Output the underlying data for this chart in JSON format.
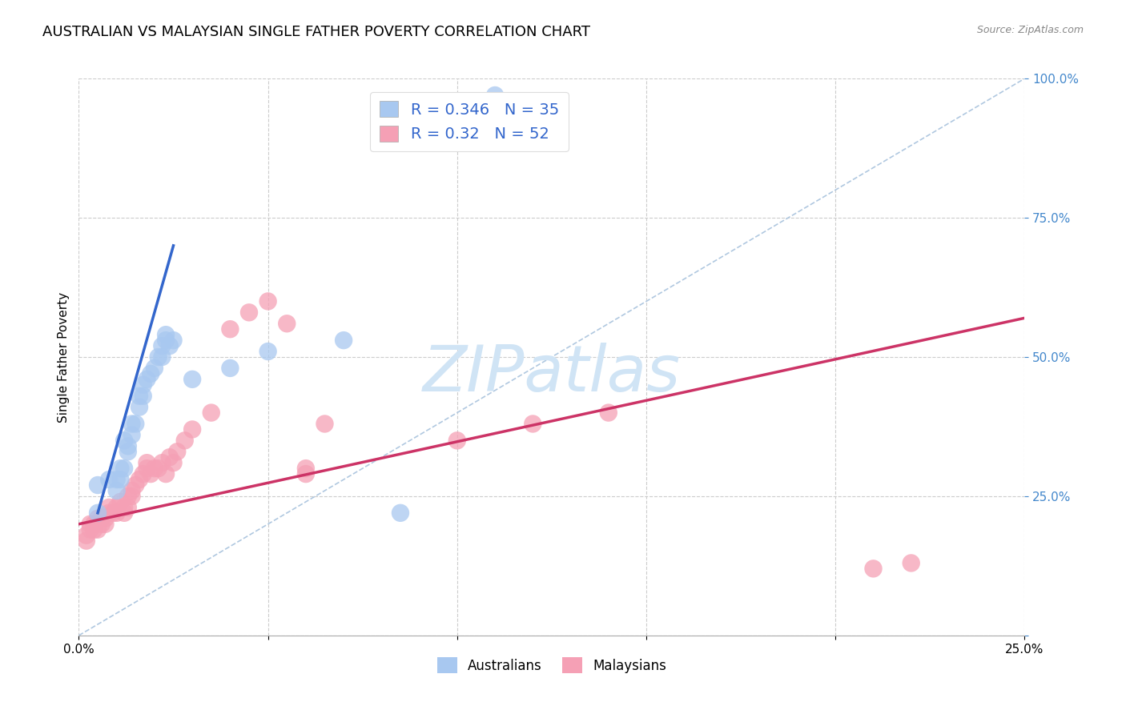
{
  "title": "AUSTRALIAN VS MALAYSIAN SINGLE FATHER POVERTY CORRELATION CHART",
  "source": "Source: ZipAtlas.com",
  "ylabel": "Single Father Poverty",
  "xlim": [
    0.0,
    0.25
  ],
  "ylim": [
    0.0,
    1.0
  ],
  "R_aus": 0.346,
  "N_aus": 35,
  "R_mal": 0.32,
  "N_mal": 52,
  "aus_color": "#A8C8F0",
  "mal_color": "#F5A0B5",
  "aus_line_color": "#3366CC",
  "mal_line_color": "#CC3366",
  "ref_line_color": "#B0C8E0",
  "watermark_color": "#D0E4F5",
  "background_color": "#FFFFFF",
  "grid_color": "#CCCCCC",
  "title_fontsize": 13,
  "axis_label_fontsize": 11,
  "tick_fontsize": 11,
  "legend_fontsize": 14,
  "aus_x": [
    0.005,
    0.005,
    0.008,
    0.01,
    0.01,
    0.011,
    0.011,
    0.012,
    0.012,
    0.013,
    0.013,
    0.014,
    0.014,
    0.015,
    0.016,
    0.016,
    0.017,
    0.017,
    0.018,
    0.019,
    0.02,
    0.021,
    0.022,
    0.022,
    0.023,
    0.023,
    0.024,
    0.025,
    0.03,
    0.04,
    0.05,
    0.07,
    0.085,
    0.11,
    0.11
  ],
  "aus_y": [
    0.22,
    0.27,
    0.28,
    0.26,
    0.28,
    0.28,
    0.3,
    0.3,
    0.35,
    0.33,
    0.34,
    0.36,
    0.38,
    0.38,
    0.41,
    0.43,
    0.43,
    0.45,
    0.46,
    0.47,
    0.48,
    0.5,
    0.5,
    0.52,
    0.53,
    0.54,
    0.52,
    0.53,
    0.46,
    0.48,
    0.51,
    0.53,
    0.22,
    0.95,
    0.97
  ],
  "aus_line_x": [
    0.005,
    0.025
  ],
  "aus_line_y": [
    0.22,
    0.7
  ],
  "mal_x": [
    0.002,
    0.002,
    0.003,
    0.003,
    0.004,
    0.004,
    0.005,
    0.005,
    0.006,
    0.006,
    0.007,
    0.007,
    0.008,
    0.008,
    0.009,
    0.01,
    0.01,
    0.011,
    0.012,
    0.012,
    0.013,
    0.013,
    0.014,
    0.014,
    0.015,
    0.016,
    0.017,
    0.018,
    0.018,
    0.019,
    0.02,
    0.021,
    0.022,
    0.023,
    0.024,
    0.025,
    0.026,
    0.028,
    0.03,
    0.035,
    0.04,
    0.045,
    0.05,
    0.055,
    0.06,
    0.06,
    0.065,
    0.1,
    0.12,
    0.14,
    0.21,
    0.22
  ],
  "mal_y": [
    0.17,
    0.18,
    0.19,
    0.2,
    0.19,
    0.2,
    0.19,
    0.21,
    0.21,
    0.2,
    0.2,
    0.21,
    0.22,
    0.23,
    0.22,
    0.23,
    0.22,
    0.24,
    0.22,
    0.23,
    0.23,
    0.25,
    0.25,
    0.26,
    0.27,
    0.28,
    0.29,
    0.3,
    0.31,
    0.29,
    0.3,
    0.3,
    0.31,
    0.29,
    0.32,
    0.31,
    0.33,
    0.35,
    0.37,
    0.4,
    0.55,
    0.58,
    0.6,
    0.56,
    0.3,
    0.29,
    0.38,
    0.35,
    0.38,
    0.4,
    0.12,
    0.13
  ],
  "mal_line_x": [
    0.0,
    0.25
  ],
  "mal_line_y": [
    0.2,
    0.57
  ]
}
